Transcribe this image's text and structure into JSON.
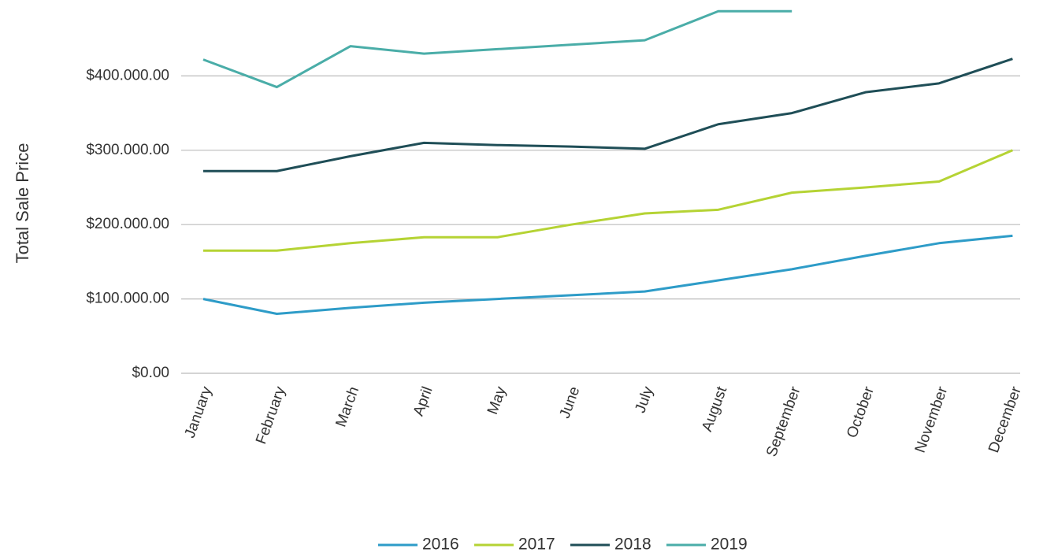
{
  "chart_data": {
    "type": "line",
    "y_label": "Total Sale Price",
    "categories": [
      "January",
      "February",
      "March",
      "April",
      "May",
      "June",
      "July",
      "August",
      "September",
      "October",
      "November",
      "December"
    ],
    "series": [
      {
        "name": "2016",
        "color": "#2e9cc8",
        "values": [
          100000,
          80000,
          88000,
          95000,
          100000,
          105000,
          110000,
          125000,
          140000,
          158000,
          175000,
          185000
        ]
      },
      {
        "name": "2017",
        "color": "#b5d334",
        "values": [
          165000,
          165000,
          175000,
          183000,
          183000,
          200000,
          215000,
          220000,
          243000,
          250000,
          258000,
          300000
        ]
      },
      {
        "name": "2018",
        "color": "#1f4e57",
        "values": [
          272000,
          272000,
          292000,
          310000,
          307000,
          305000,
          302000,
          335000,
          350000,
          378000,
          390000,
          423000
        ]
      },
      {
        "name": "2019",
        "color": "#4aada8",
        "values": [
          422000,
          385000,
          440000,
          430000,
          436000,
          442000,
          448000,
          487000,
          487000,
          null,
          null,
          null
        ]
      }
    ],
    "ylim": [
      0,
      500000
    ],
    "yticks": [
      {
        "value": 0,
        "label": "$0.00"
      },
      {
        "value": 100000,
        "label": "$100.000.00"
      },
      {
        "value": 200000,
        "label": "$200.000.00"
      },
      {
        "value": 300000,
        "label": "$300.000.00"
      },
      {
        "value": 400000,
        "label": "$400.000.00"
      }
    ],
    "grid": true
  }
}
